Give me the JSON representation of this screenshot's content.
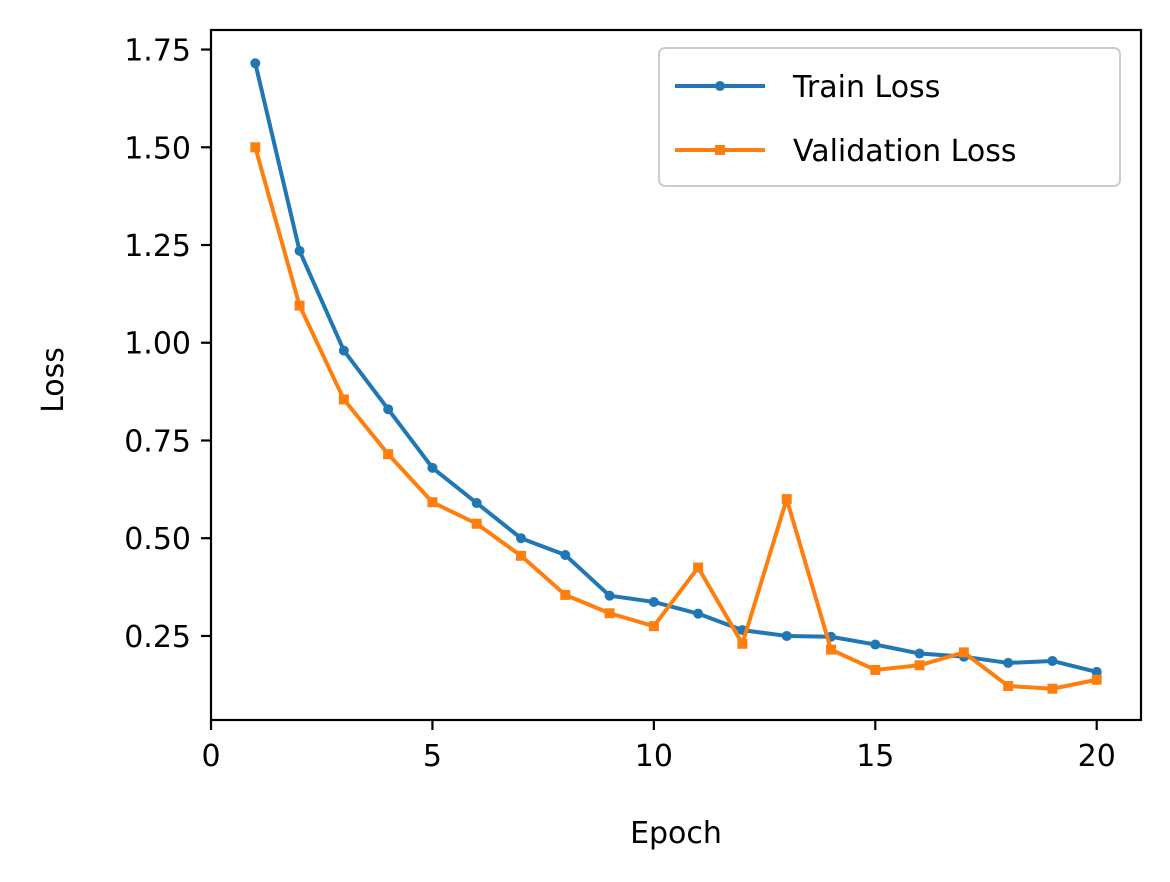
{
  "chart_data": {
    "type": "line",
    "title": "",
    "xlabel": "Epoch",
    "ylabel": "Loss",
    "xlim": [
      0,
      21
    ],
    "ylim": [
      0.035,
      1.8
    ],
    "xticks": [
      0,
      5,
      10,
      15,
      20
    ],
    "xtick_labels": [
      "0",
      "5",
      "10",
      "15",
      "20"
    ],
    "yticks": [
      0.25,
      0.5,
      0.75,
      1.0,
      1.25,
      1.5,
      1.75
    ],
    "ytick_labels": [
      "0.25",
      "0.50",
      "0.75",
      "1.00",
      "1.25",
      "1.50",
      "1.75"
    ],
    "grid": false,
    "legend_position": "top-right",
    "x": [
      1,
      2,
      3,
      4,
      5,
      6,
      7,
      8,
      9,
      10,
      11,
      12,
      13,
      14,
      15,
      16,
      17,
      18,
      19,
      20
    ],
    "series": [
      {
        "name": "Train Loss",
        "color": "#1f77b4",
        "marker": "circle",
        "values": [
          1.715,
          1.235,
          0.98,
          0.83,
          0.68,
          0.59,
          0.5,
          0.457,
          0.353,
          0.337,
          0.307,
          0.265,
          0.25,
          0.248,
          0.228,
          0.205,
          0.197,
          0.181,
          0.186,
          0.158
        ]
      },
      {
        "name": "Validation Loss",
        "color": "#ff7f0e",
        "marker": "square",
        "values": [
          1.5,
          1.095,
          0.855,
          0.715,
          0.592,
          0.537,
          0.455,
          0.355,
          0.308,
          0.275,
          0.425,
          0.23,
          0.6,
          0.215,
          0.163,
          0.175,
          0.208,
          0.122,
          0.115,
          0.138
        ]
      }
    ]
  }
}
